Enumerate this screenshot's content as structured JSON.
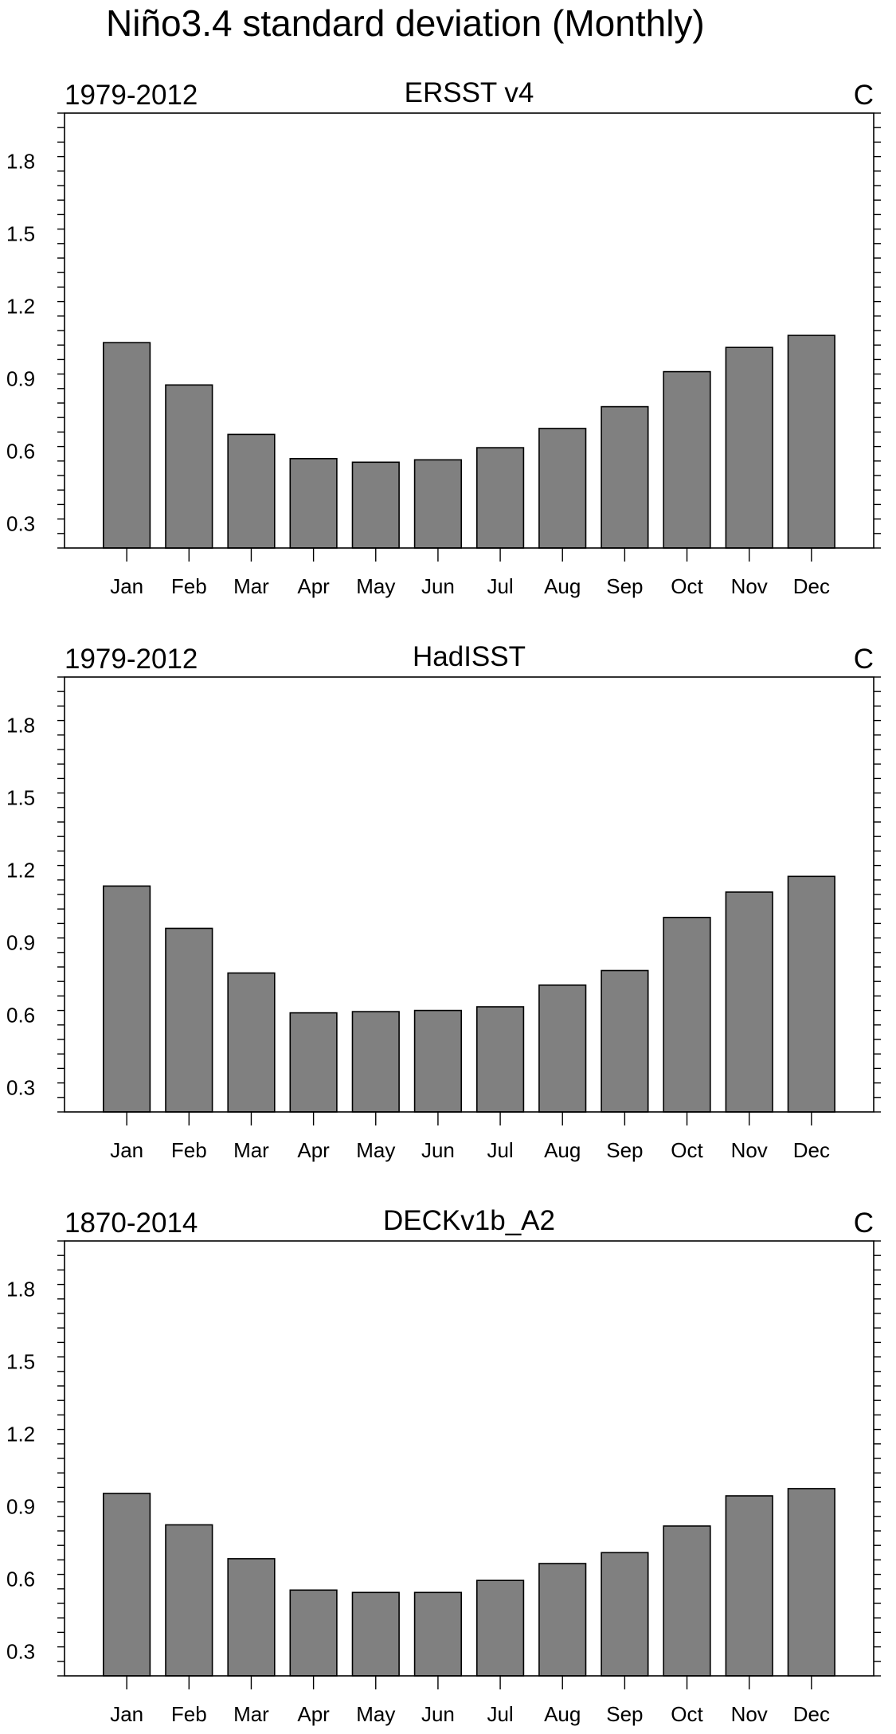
{
  "figure": {
    "title": "Niño3.4 standard deviation (Monthly)"
  },
  "chart_data": [
    {
      "type": "bar",
      "title": "ERSST v4",
      "left_label": "1979-2012",
      "right_label": "C",
      "categories": [
        "Jan",
        "Feb",
        "Mar",
        "Apr",
        "May",
        "Jun",
        "Jul",
        "Aug",
        "Sep",
        "Oct",
        "Nov",
        "Dec"
      ],
      "values": [
        1.05,
        0.875,
        0.67,
        0.57,
        0.555,
        0.565,
        0.615,
        0.695,
        0.785,
        0.93,
        1.03,
        1.08
      ],
      "ylim": [
        0.2,
        2.0
      ],
      "yticks": [
        0.3,
        0.6,
        0.9,
        1.2,
        1.5,
        1.8
      ],
      "ytick_labels": [
        "0.3",
        "0.6",
        "0.9",
        "1.2",
        "1.5",
        "1.8"
      ],
      "bar_color": "#808080",
      "grid": false
    },
    {
      "type": "bar",
      "title": "HadISST",
      "left_label": "1979-2012",
      "right_label": "C",
      "categories": [
        "Jan",
        "Feb",
        "Mar",
        "Apr",
        "May",
        "Jun",
        "Jul",
        "Aug",
        "Sep",
        "Oct",
        "Nov",
        "Dec"
      ],
      "values": [
        1.135,
        0.96,
        0.775,
        0.61,
        0.615,
        0.62,
        0.635,
        0.725,
        0.785,
        1.005,
        1.11,
        1.175
      ],
      "ylim": [
        0.2,
        2.0
      ],
      "yticks": [
        0.3,
        0.6,
        0.9,
        1.2,
        1.5,
        1.8
      ],
      "ytick_labels": [
        "0.3",
        "0.6",
        "0.9",
        "1.2",
        "1.5",
        "1.8"
      ],
      "bar_color": "#808080",
      "grid": false
    },
    {
      "type": "bar",
      "title": "DECKv1b_A2",
      "left_label": "1870-2014",
      "right_label": "C",
      "categories": [
        "Jan",
        "Feb",
        "Mar",
        "Apr",
        "May",
        "Jun",
        "Jul",
        "Aug",
        "Sep",
        "Oct",
        "Nov",
        "Dec"
      ],
      "values": [
        0.955,
        0.825,
        0.685,
        0.555,
        0.545,
        0.545,
        0.595,
        0.665,
        0.71,
        0.82,
        0.945,
        0.975
      ],
      "ylim": [
        0.2,
        2.0
      ],
      "yticks": [
        0.3,
        0.6,
        0.9,
        1.2,
        1.5,
        1.8
      ],
      "ytick_labels": [
        "0.3",
        "0.6",
        "0.9",
        "1.2",
        "1.5",
        "1.8"
      ],
      "bar_color": "#808080",
      "grid": false
    }
  ]
}
